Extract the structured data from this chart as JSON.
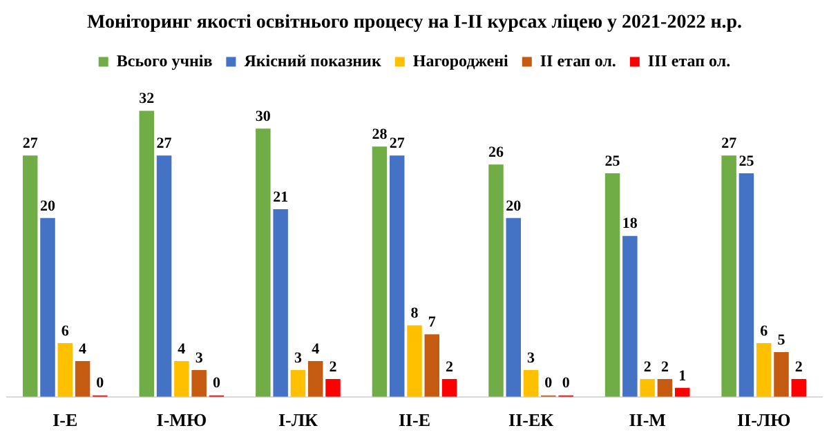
{
  "chart_data": {
    "type": "bar",
    "title": "Моніторинг якості освітнього процесу на I-II курсах ліцею у 2021-2022 н.р.",
    "categories": [
      "I-Е",
      "I-МЮ",
      "I-ЛК",
      "II-Е",
      "II-ЕК",
      "II-М",
      "II-ЛЮ"
    ],
    "series": [
      {
        "name": "Всього учнів",
        "color": "#70ad47",
        "values": [
          27,
          32,
          30,
          28,
          26,
          25,
          27
        ]
      },
      {
        "name": "Якісний показник",
        "color": "#4472c4",
        "values": [
          20,
          27,
          21,
          27,
          20,
          18,
          25
        ]
      },
      {
        "name": "Нагороджені",
        "color": "#ffc000",
        "values": [
          6,
          4,
          3,
          8,
          3,
          2,
          6
        ]
      },
      {
        "name": "II етап ол.",
        "color": "#c55a11",
        "values": [
          4,
          3,
          4,
          7,
          0,
          2,
          5
        ]
      },
      {
        "name": "III етап ол.",
        "color": "#ff0000",
        "values": [
          0,
          0,
          2,
          2,
          0,
          1,
          2
        ]
      }
    ],
    "data_labels": true,
    "legend": "top",
    "grid": false
  }
}
